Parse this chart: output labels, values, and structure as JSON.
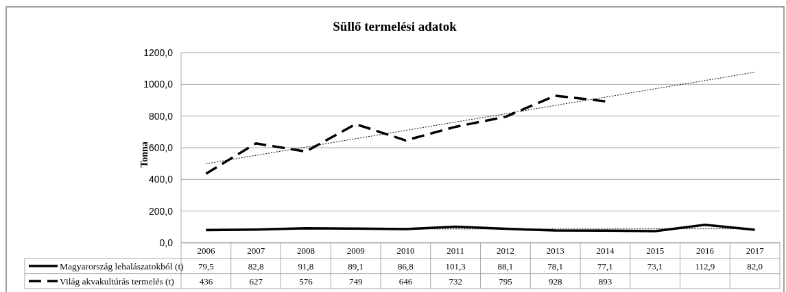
{
  "chart_data": {
    "type": "line",
    "title": "Süllő termelési adatok",
    "ylabel": "Tonna",
    "categories": [
      "2006",
      "2007",
      "2008",
      "2009",
      "2010",
      "2011",
      "2012",
      "2013",
      "2014",
      "2015",
      "2016",
      "2017"
    ],
    "series": [
      {
        "name": "Magyarország lehalászatokból (t)",
        "color": "#000000",
        "line_style": "solid",
        "values": [
          79.5,
          82.8,
          91.8,
          89.1,
          86.8,
          101.3,
          88.1,
          78.1,
          77.1,
          73.1,
          112.9,
          82.0
        ],
        "value_labels": [
          "79,5",
          "82,8",
          "91,8",
          "89,1",
          "86,8",
          "101,3",
          "88,1",
          "78,1",
          "77,1",
          "73,1",
          "112,9",
          "82,0"
        ]
      },
      {
        "name": "Világ akvakultúrás termelés (t)",
        "color": "#000000",
        "line_style": "dashed",
        "values": [
          436,
          627,
          576,
          749,
          646,
          732,
          795,
          928,
          893,
          null,
          null,
          null
        ],
        "value_labels": [
          "436",
          "627",
          "576",
          "749",
          "646",
          "732",
          "795",
          "928",
          "893",
          null,
          null,
          null
        ]
      },
      {
        "color": "#000000",
        "line_style": "dotted",
        "values": [
          86,
          86,
          86,
          86,
          87,
          87,
          87,
          87,
          87,
          88,
          88,
          88
        ]
      },
      {
        "color": "#000000",
        "line_style": "dotted",
        "values": [
          499,
          552,
          604,
          657,
          709,
          762,
          814,
          867,
          919,
          972,
          1024,
          1077
        ]
      }
    ],
    "ylim": [
      0,
      1200
    ],
    "yticks": [
      {
        "value": 0,
        "label": "0,0"
      },
      {
        "value": 200,
        "label": "200,0"
      },
      {
        "value": 400,
        "label": "400,0"
      },
      {
        "value": 600,
        "label": "600,0"
      },
      {
        "value": 800,
        "label": "800,0"
      },
      {
        "value": 1000,
        "label": "1000,0"
      },
      {
        "value": 1200,
        "label": "1200,0"
      }
    ],
    "grid": "y",
    "legend": "bottom",
    "marker": "none"
  }
}
